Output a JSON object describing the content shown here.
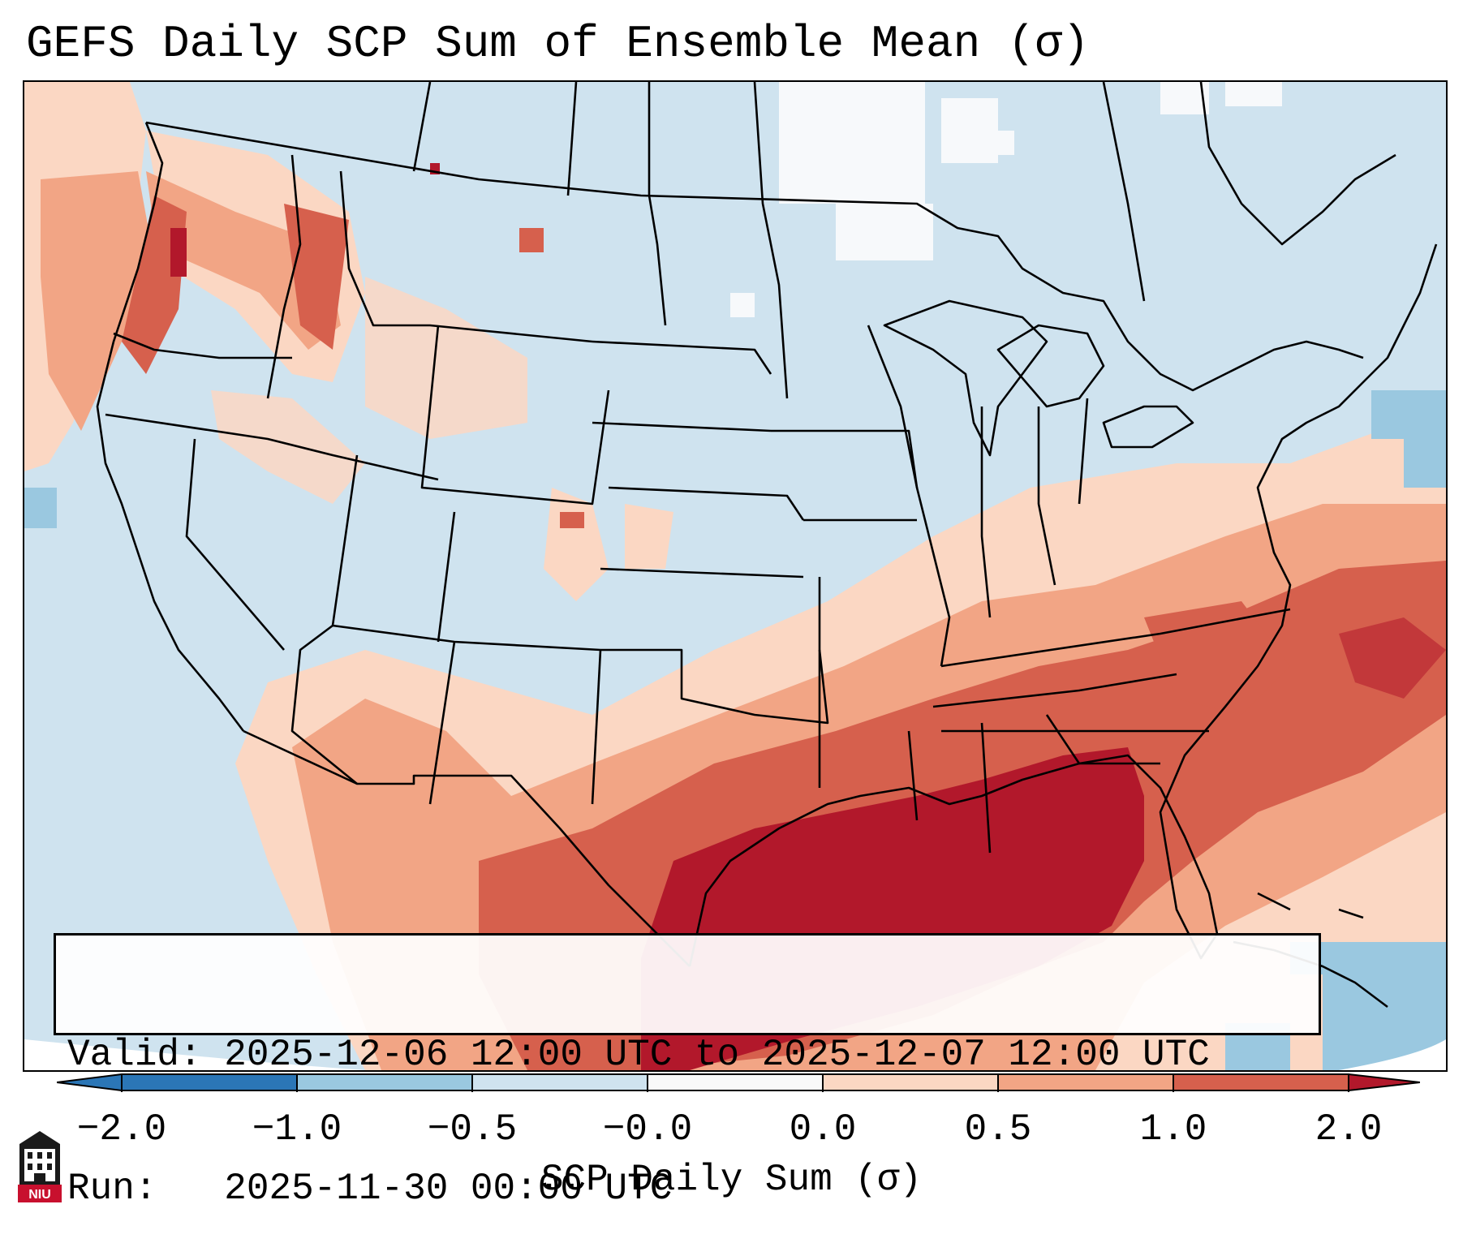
{
  "title": "GEFS Daily SCP Sum of Ensemble Mean (σ)",
  "info": {
    "valid_label": "Valid:",
    "valid_value": "2025-12-06 12:00 UTC to 2025-12-07 12:00 UTC",
    "run_label": "Run:",
    "run_value": "2025-11-30 00:00 UTC"
  },
  "colorbar": {
    "label": "SCP Daily Sum (σ)",
    "ticks": [
      "−2.0",
      "−1.0",
      "−0.5",
      "−0.0",
      "0.0",
      "0.5",
      "1.0",
      "2.0"
    ],
    "colors": [
      "#2b76b6",
      "#5aa0cc",
      "#9ac8e0",
      "#cfe3ef",
      "#f9f9f9",
      "#fbd7c3",
      "#f2a585",
      "#d6604d",
      "#b2182b"
    ]
  },
  "logo_text": "NIU"
}
